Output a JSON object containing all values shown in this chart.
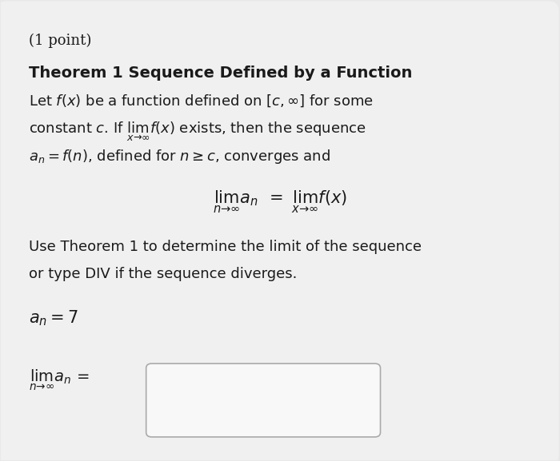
{
  "background_color": "#e8e8e8",
  "card_color": "#f0f0f0",
  "text_color": "#1a1a1a",
  "point_text": "(1 point)",
  "title_text": "Theorem 1 Sequence Defined by a Function",
  "body_line1": "Let $f(x)$ be a function defined on $[c, \\infty]$ for some",
  "body_line2": "constant $c$. If $\\lim_{x\\to\\infty} f(x)$ exists, then the sequence",
  "body_line3": "$a_n = f(n)$, defined for $n \\geq c$, converges and",
  "center_eq": "$\\lim_{n\\to\\infty} a_n \\ = \\ \\lim_{x\\to\\infty} f(x)$",
  "use_line1": "Use Theorem 1 to determine the limit of the sequence",
  "use_line2": "or type DIV if the sequence diverges.",
  "sequence_eq": "$a_n = 7$",
  "lim_label": "$\\lim_{n\\to\\infty} a_n =$",
  "font_size_point": 13,
  "font_size_title": 14,
  "font_size_body": 13,
  "font_size_center": 15,
  "font_size_seq": 15,
  "font_size_lim": 14
}
